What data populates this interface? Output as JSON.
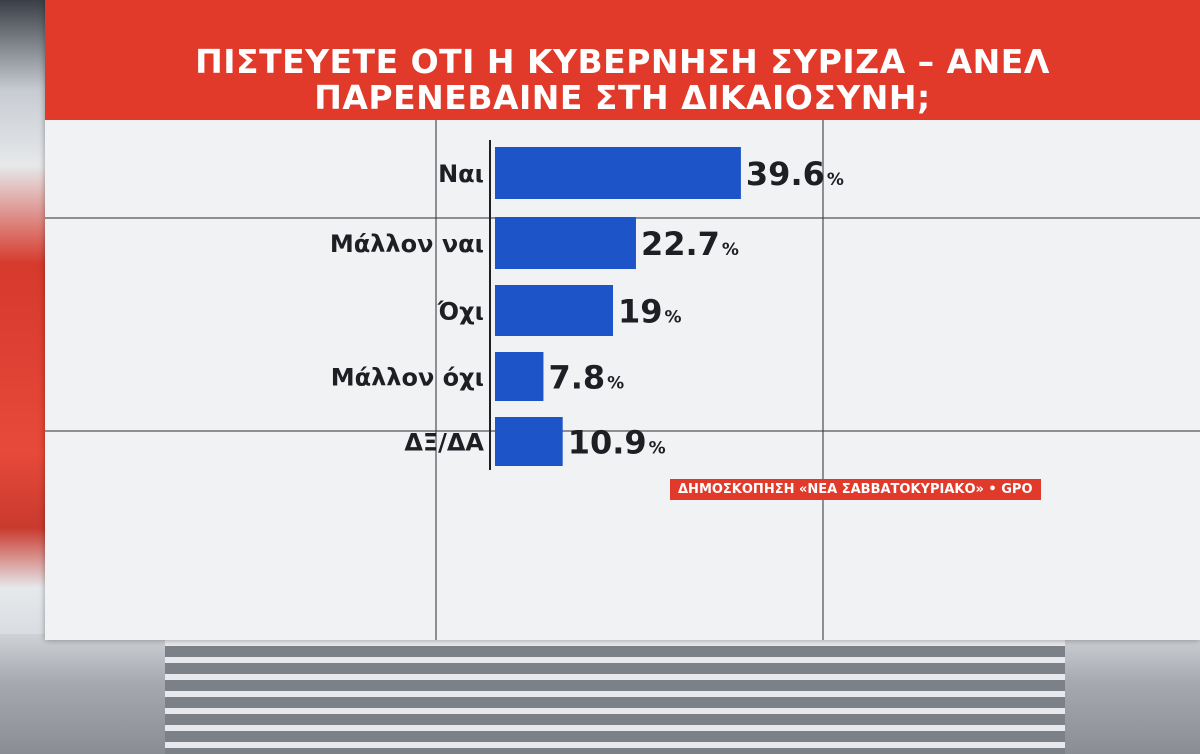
{
  "chart_data": {
    "type": "bar",
    "orientation": "horizontal",
    "title": "ΠΙΣΤΕΥΕΤΕ ΟΤΙ Η ΚΥΒΕΡΝΗΣΗ ΣΥΡΙΖΑ – ΑΝΕΛ ΠΑΡΕΝΕΒΑΙΝΕ ΣΤΗ ΔΙΚΑΙΟΣΥΝΗ;",
    "title_lines": [
      "ΠΙΣΤΕΥΕΤΕ ΟΤΙ Η ΚΥΒΕΡΝΗΣΗ ΣΥΡΙΖΑ – ΑΝΕΛ",
      "ΠΑΡΕΝΕΒΑΙΝΕ ΣΤΗ ΔΙΚΑΙΟΣΥΝΗ;"
    ],
    "categories": [
      "Ναι",
      "Μάλλον ναι",
      "Όχι",
      "Μάλλον όχι",
      "ΔΞ/ΔΑ"
    ],
    "values": [
      39.6,
      22.7,
      19,
      7.8,
      10.9
    ],
    "value_labels": [
      "39.6",
      "22.7",
      "19",
      "7.8",
      "10.9"
    ],
    "value_unit": "%",
    "xlim": [
      0,
      40
    ],
    "bar_color": "#1d55c9",
    "grid": false,
    "source": "ΔΗΜΟΣΚΟΠΗΣΗ «ΝΕΑ ΣΑΒΒΑΤΟΚΥΡΙΑΚΟ» • GPO"
  },
  "colors": {
    "header": "#e23a2a",
    "panel": "#f1f2f3",
    "text": "#1d1f24"
  }
}
